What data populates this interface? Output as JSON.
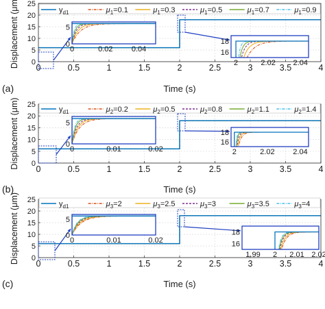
{
  "chart_data": [
    {
      "type": "line",
      "panel_label": "(a)",
      "xlabel": "Time (s)",
      "ylabel": "Displacement (μm)",
      "xlim": [
        0,
        4
      ],
      "ylim": [
        0,
        25
      ],
      "xticks": [
        "0",
        "0.5",
        "1",
        "1.5",
        "2",
        "2.5",
        "3",
        "3.5",
        "4"
      ],
      "yticks": [
        "0",
        "5",
        "10",
        "15",
        "20",
        "25"
      ],
      "grid": true,
      "legend_position": "top",
      "reference": {
        "label": "y",
        "sub": "d1",
        "color": "#0072BD",
        "steps": [
          [
            0,
            6
          ],
          [
            2,
            18
          ],
          [
            4,
            18
          ]
        ]
      },
      "series": [
        {
          "sym": "μ",
          "sub": "1",
          "value": "=0.1",
          "tau": 0.005,
          "color": "#D95319",
          "dash": "dashdot"
        },
        {
          "sym": "μ",
          "sub": "1",
          "value": "=0.3",
          "tau": 0.0035,
          "color": "#EDB120",
          "dash": "solid"
        },
        {
          "sym": "μ",
          "sub": "1",
          "value": "=0.5",
          "tau": 0.0025,
          "color": "#7E2F8E",
          "dash": "dashed"
        },
        {
          "sym": "μ",
          "sub": "1",
          "value": "=0.7",
          "tau": 0.0018,
          "color": "#77AC30",
          "dash": "solid"
        },
        {
          "sym": "μ",
          "sub": "1",
          "value": "=0.9",
          "tau": 0.0012,
          "color": "#4DBEEE",
          "dash": "dashdot"
        }
      ],
      "insets": [
        {
          "xlim": [
            0,
            0.05
          ],
          "ylim": [
            0,
            6.5
          ],
          "xticks": [
            0,
            0.02,
            0.04
          ],
          "xticklabels": [
            "0",
            "0.02",
            "0.04"
          ],
          "yticks": [
            0,
            5
          ],
          "yticklabels": [
            "0",
            "5"
          ]
        },
        {
          "xlim": [
            1.997,
            2.045
          ],
          "ylim": [
            15,
            19
          ],
          "xticks": [
            2,
            2.02,
            2.04
          ],
          "xticklabels": [
            "2",
            "2.02",
            "2.04"
          ],
          "yticks": [
            16,
            18
          ],
          "yticklabels": [
            "16",
            "18"
          ]
        }
      ]
    },
    {
      "type": "line",
      "panel_label": "(b)",
      "xlabel": "Time (s)",
      "ylabel": "Displacement (μm)",
      "xlim": [
        0,
        4
      ],
      "ylim": [
        0,
        25
      ],
      "xticks": [
        "0",
        "0.5",
        "1",
        "1.5",
        "2",
        "2.5",
        "3",
        "3.5",
        "4"
      ],
      "yticks": [
        "0",
        "5",
        "10",
        "15",
        "20",
        "25"
      ],
      "grid": true,
      "legend_position": "top",
      "reference": {
        "label": "y",
        "sub": "d1",
        "color": "#0072BD",
        "steps": [
          [
            0,
            6
          ],
          [
            2,
            18
          ],
          [
            4,
            18
          ]
        ]
      },
      "series": [
        {
          "sym": "μ",
          "sub": "2",
          "value": "=0.2",
          "tau": 0.0018,
          "color": "#D95319",
          "dash": "dashdot"
        },
        {
          "sym": "μ",
          "sub": "2",
          "value": "=0.5",
          "tau": 0.0014,
          "color": "#EDB120",
          "dash": "solid"
        },
        {
          "sym": "μ",
          "sub": "2",
          "value": "=0.8",
          "tau": 0.0011,
          "color": "#7E2F8E",
          "dash": "dashed"
        },
        {
          "sym": "μ",
          "sub": "2",
          "value": "=1.1",
          "tau": 0.0008,
          "color": "#77AC30",
          "dash": "solid"
        },
        {
          "sym": "μ",
          "sub": "2",
          "value": "=1.4",
          "tau": 0.0006,
          "color": "#4DBEEE",
          "dash": "dashdot"
        }
      ],
      "insets": [
        {
          "xlim": [
            0,
            0.02
          ],
          "ylim": [
            0,
            6.5
          ],
          "xticks": [
            0,
            0.01,
            0.02
          ],
          "xticklabels": [
            "0",
            "0.01",
            "0.02"
          ],
          "yticks": [
            0,
            5
          ],
          "yticklabels": [
            "0",
            "5"
          ]
        },
        {
          "xlim": [
            1.998,
            2.045
          ],
          "ylim": [
            15,
            19
          ],
          "xticks": [
            2,
            2.02,
            2.04
          ],
          "xticklabels": [
            "2",
            "2.02",
            "2.04"
          ],
          "yticks": [
            16,
            18
          ],
          "yticklabels": [
            "16",
            "18"
          ]
        }
      ]
    },
    {
      "type": "line",
      "panel_label": "(c)",
      "xlabel": "Time (s)",
      "ylabel": "Displacement (μm)",
      "xlim": [
        0,
        4
      ],
      "ylim": [
        0,
        25
      ],
      "xticks": [
        "0",
        "0.5",
        "1",
        "1.5",
        "2",
        "2.5",
        "3",
        "3.5",
        "4"
      ],
      "yticks": [
        "0",
        "5",
        "10",
        "15",
        "20",
        "25"
      ],
      "grid": true,
      "legend_position": "top",
      "reference": {
        "label": "y",
        "sub": "d1",
        "color": "#0072BD",
        "steps": [
          [
            0,
            6
          ],
          [
            2,
            18
          ],
          [
            4,
            18
          ]
        ]
      },
      "series": [
        {
          "sym": "μ",
          "sub": "3",
          "value": "=2",
          "tau": 0.0022,
          "color": "#D95319",
          "dash": "dashdot"
        },
        {
          "sym": "μ",
          "sub": "3",
          "value": "=2.5",
          "tau": 0.0019,
          "color": "#EDB120",
          "dash": "solid"
        },
        {
          "sym": "μ",
          "sub": "3",
          "value": "=3",
          "tau": 0.0016,
          "color": "#7E2F8E",
          "dash": "dashed"
        },
        {
          "sym": "μ",
          "sub": "3",
          "value": "=3.5",
          "tau": 0.0014,
          "color": "#77AC30",
          "dash": "solid"
        },
        {
          "sym": "μ",
          "sub": "3",
          "value": "=4",
          "tau": 0.0012,
          "color": "#4DBEEE",
          "dash": "dashdot"
        }
      ],
      "insets": [
        {
          "xlim": [
            0,
            0.02
          ],
          "ylim": [
            0,
            6.5
          ],
          "xticks": [
            0,
            0.01,
            0.02
          ],
          "xticklabels": [
            "0",
            "0.01",
            "0.02"
          ],
          "yticks": [
            0,
            5
          ],
          "yticklabels": [
            "0",
            "5"
          ]
        },
        {
          "xlim": [
            1.985,
            2.02
          ],
          "ylim": [
            15,
            19
          ],
          "xticks": [
            1.99,
            2,
            2.01,
            2.02
          ],
          "xticklabels": [
            "1.99",
            "2",
            "2.01",
            "2.02"
          ],
          "yticks": [
            16,
            18
          ],
          "yticklabels": [
            "16",
            "18"
          ]
        }
      ]
    }
  ]
}
